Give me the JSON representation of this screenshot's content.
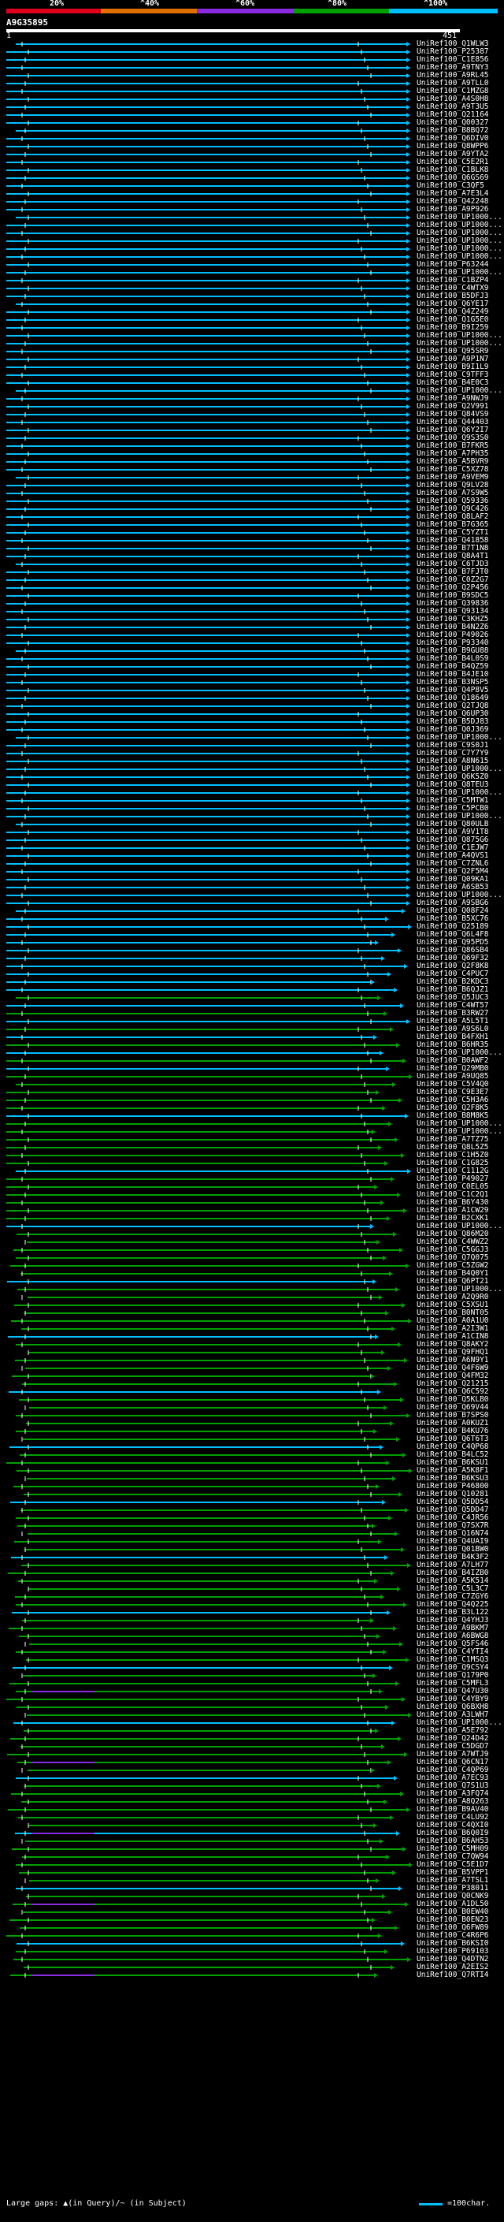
{
  "scale": {
    "labels": [
      "20%",
      "^40%",
      "^60%",
      "^80%",
      "^100%"
    ],
    "colors": [
      "#e0001c",
      "#e07000",
      "#8a2be2",
      "#00a000",
      "#00bfff"
    ]
  },
  "query": {
    "id": "A9G35895",
    "start": "1",
    "end": "451"
  },
  "hits": [
    "UniRef100_Q1WLW3",
    "UniRef100_P25387",
    "UniRef100_C1E856",
    "UniRef100_A9TNY3",
    "UniRef100_A9RL45",
    "UniRef100_A9TLL0",
    "UniRef100_C1MZG8",
    "UniRef100_A4S0H8",
    "UniRef100_A9T3U5",
    "UniRef100_Q21164",
    "UniRef100_Q00327",
    "UniRef100_B8BQ72",
    "UniRef100_Q6DIV0",
    "UniRef100_Q8WPP6",
    "UniRef100_A9YTA2",
    "UniRef100_C5E2R1",
    "UniRef100_C1BLK8",
    "UniRef100_Q6GS69",
    "UniRef100_C3QF5",
    "UniRef100_A7E3L4",
    "UniRef100_Q42248",
    "UniRef100_A9P926",
    "UniRef100_UP1000...",
    "UniRef100_UP1000...",
    "UniRef100_UP1000...",
    "UniRef100_UP1000...",
    "UniRef100_UP1000...",
    "UniRef100_UP1000...",
    "UniRef100_P63244",
    "UniRef100_UP1000...",
    "UniRef100_C1BZP4",
    "UniRef100_C4WTX9",
    "UniRef100_B5DFJ3",
    "UniRef100_Q6YE17",
    "UniRef100_Q4Z249",
    "UniRef100_Q1G5E0",
    "UniRef100_B9I259",
    "UniRef100_UP1000...",
    "UniRef100_UP1000...",
    "UniRef100_Q95SR9",
    "UniRef100_A9P1N7",
    "UniRef100_B9I1L9",
    "UniRef100_C9TFF3",
    "UniRef100_B4E0C3",
    "UniRef100_UP1000...",
    "UniRef100_A9NWJ9",
    "UniRef100_Q2V991",
    "UniRef100_Q84VS9",
    "UniRef100_Q44403",
    "UniRef100_Q6Y2I7",
    "UniRef100_Q9S3S0",
    "UniRef100_B7FKR5",
    "UniRef100_A7PH35",
    "UniRef100_A5BVR9",
    "UniRef100_C5XZ78",
    "UniRef100_A9VEM9",
    "UniRef100_Q9LV28",
    "UniRef100_A7S9W5",
    "UniRef100_Q59336",
    "UniRef100_Q9C426",
    "UniRef100_Q8LAF2",
    "UniRef100_B7G365",
    "UniRef100_C5YZT1",
    "UniRef100_Q41858",
    "UniRef100_B7T1N8",
    "UniRef100_Q8A4T1",
    "UniRef100_C6TJD3",
    "UniRef100_B7FJT0",
    "UniRef100_C0Z2G7",
    "UniRef100_Q2P456",
    "UniRef100_B9SDC5",
    "UniRef100_Q39836",
    "UniRef100_Q93134",
    "UniRef100_C3KHZ5",
    "UniRef100_B4N2Z6",
    "UniRef100_P49026",
    "UniRef100_P93340",
    "UniRef100_B9GU88",
    "UniRef100_B4L0S9",
    "UniRef100_B4QZ59",
    "UniRef100_B4JE10",
    "UniRef100_B3NSP5",
    "UniRef100_Q4P8V5",
    "UniRef100_Q18649",
    "UniRef100_Q2TJQ8",
    "UniRef100_Q6UP30",
    "UniRef100_B5DJ83",
    "UniRef100_Q0J369",
    "UniRef100_UP1000...",
    "UniRef100_C9S0J1",
    "UniRef100_C7Y7Y9",
    "UniRef100_A8N615",
    "UniRef100_UP1000...",
    "UniRef100_Q6K5Z0",
    "UniRef100_Q8TEU3",
    "UniRef100_UP1000...",
    "UniRef100_C5MTW1",
    "UniRef100_C5PCB0",
    "UniRef100_UP1000...",
    "UniRef100_Q80ULB",
    "UniRef100_A9V1T8",
    "UniRef100_Q875G6",
    "UniRef100_C1EJW7",
    "UniRef100_A4QVS1",
    "UniRef100_C7ZNL6",
    "UniRef100_Q2F5M4",
    "UniRef100_Q09KA1",
    "UniRef100_A6SB53",
    "UniRef100_UP1000...",
    "UniRef100_A9SBG6",
    "UniRef100_Q08F24",
    "UniRef100_B5XC76",
    "UniRef100_Q25189",
    "UniRef100_Q6L4F8",
    "UniRef100_Q95PD5",
    "UniRef100_Q86SB4",
    "UniRef100_Q69F32",
    "UniRef100_Q2F8K8",
    "UniRef100_C4PUC7",
    "UniRef100_B2KDC3",
    "UniRef100_B6QJZ1",
    "UniRef100_Q5JUC3",
    "UniRef100_C4WT57",
    "UniRef100_B3RW27",
    "UniRef100_A5L5T1",
    "UniRef100_A9S6L0",
    "UniRef100_B4FXH1",
    "UniRef100_B6HR35",
    "UniRef100_UP1000...",
    "UniRef100_B0AWF2",
    "UniRef100_Q29MB0",
    "UniRef100_A9UQ85",
    "UniRef100_C5V4Q0",
    "UniRef100_C9E3E7",
    "UniRef100_C5H3A6",
    "UniRef100_Q2F8K5",
    "UniRef100_B8M8K5",
    "UniRef100_UP1000...",
    "UniRef100_UP1000...",
    "UniRef100_A7TZ75",
    "UniRef100_Q8L5Z5",
    "UniRef100_C1H5Z0",
    "UniRef100_C1G825",
    "UniRef100_C1112G",
    "UniRef100_P49027",
    "UniRef100_C0EL05",
    "UniRef100_C1C2Q1",
    "UniRef100_B6Y430",
    "UniRef100_A1CW29",
    "UniRef100_B2CXK1",
    "UniRef100_UP1000...",
    "UniRef100_Q86M20",
    "UniRef100_C4WWZ2",
    "UniRef100_C5GGJ3",
    "UniRef100_Q7Q075",
    "UniRef100_C5ZGW2",
    "UniRef100_B4Q0Y1",
    "UniRef100_Q6PT21",
    "UniRef100_UP1000...",
    "UniRef100_A2Q9R0",
    "UniRef100_C5XSU1",
    "UniRef100_B0NT05",
    "UniRef100_A0A1U0",
    "UniRef100_A2I3W1",
    "UniRef100_A1CIN8",
    "UniRef100_Q8AKY2",
    "UniRef100_Q9FHQ1",
    "UniRef100_A6N9Y1",
    "UniRef100_Q4F6W9",
    "UniRef100_Q4FM32",
    "UniRef100_Q21215",
    "UniRef100_Q6C592",
    "UniRef100_Q5KLB0",
    "UniRef100_Q69V44",
    "UniRef100_B7SPS0",
    "UniRef100_A0KUZ1",
    "UniRef100_B4KU76",
    "UniRef100_Q6T6T3",
    "UniRef100_C4QP68",
    "UniRef100_B4LC52",
    "UniRef100_B6KSU1",
    "UniRef100_A5K8F1",
    "UniRef100_B6KSU3",
    "UniRef100_P46800",
    "UniRef100_Q10281",
    "UniRef100_Q5DD54",
    "UniRef100_Q5DD47",
    "UniRef100_C4JR56",
    "UniRef100_Q7SX7R",
    "UniRef100_Q16N74",
    "UniRef100_Q4UAI9",
    "UniRef100_Q01BW0",
    "UniRef100_B4K3F2",
    "UniRef100_A7LH77",
    "UniRef100_B4IZB0",
    "UniRef100_A5K514",
    "UniRef100_C5L3C7",
    "UniRef100_C7ZGY6",
    "UniRef100_Q4Q225",
    "UniRef100_B3L122",
    "UniRef100_Q4YHJ3",
    "UniRef100_A9BKM7",
    "UniRef100_A6BWG8",
    "UniRef100_Q5FS46",
    "UniRef100_C4YTI4",
    "UniRef100_C1MSQ3",
    "UniRef100_Q9CSY4",
    "UniRef100_Q179P0",
    "UniRef100_C5MFL3",
    "UniRef100_Q47U30",
    "UniRef100_C4YBY9",
    "UniRef100_Q6BXH8",
    "UniRef100_A3LWH7",
    "UniRef100_UP1000...",
    "UniRef100_A5E792",
    "UniRef100_Q24D42",
    "UniRef100_C5DGD7",
    "UniRef100_A7WTJ9",
    "UniRef100_Q6CN17",
    "UniRef100_C4QP69",
    "UniRef100_A7EC93",
    "UniRef100_Q7S1U3",
    "UniRef100_A3FQ74",
    "UniRef100_A8Q263",
    "UniRef100_B9AV40",
    "UniRef100_C4LU92",
    "UniRef100_C4QXI0",
    "UniRef100_B6Q0I9",
    "UniRef100_B6AH53",
    "UniRef100_C5MH09",
    "UniRef100_C7QW94",
    "UniRef100_C5E1D7",
    "UniRef100_B5VPP1",
    "UniRef100_A7TSL1",
    "UniRef100_P38011",
    "UniRef100_Q0CNK9",
    "UniRef100_A1DL50",
    "UniRef100_B0EW40",
    "UniRef100_B0EN23",
    "UniRef100_Q6FW89",
    "UniRef100_C4R6P6",
    "UniRef100_B6KSI0",
    "UniRef100_P69103",
    "UniRef100_Q4DTN2",
    "UniRef100_A2EIS2",
    "UniRef100_Q7RTI4"
  ],
  "legend": {
    "left": "Large gaps: ▲(in Query)/~ (in Subject)",
    "right": "=100char."
  }
}
